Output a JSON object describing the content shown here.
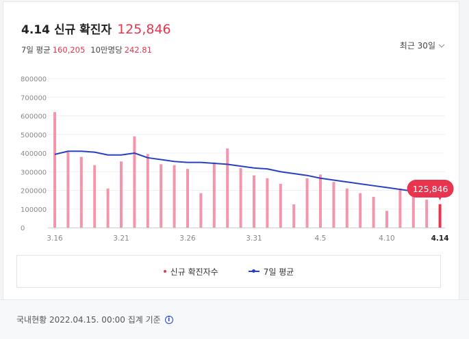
{
  "header": {
    "date": "4.14",
    "title": "신규 확진자",
    "value": "125,846",
    "avg_label": "7일 평균",
    "avg_value": "160,205",
    "per100k_label": "10만명당",
    "per100k_value": "242.81",
    "period": "최근 30일"
  },
  "legend": {
    "bar_label": "신규 확진자수",
    "line_label": "7일 평균"
  },
  "footer": {
    "note": "국내현황 2022.04.15. 00:00 집계 기준",
    "info_icon": "info-icon"
  },
  "colors": {
    "bar": "#f496ab",
    "bar_highlight": "#e8344e",
    "line": "#2740c3",
    "accent": "#e8344e"
  },
  "chart_data": {
    "type": "bar",
    "categories": [
      "3.16",
      "3.17",
      "3.18",
      "3.19",
      "3.20",
      "3.21",
      "3.22",
      "3.23",
      "3.24",
      "3.25",
      "3.26",
      "3.27",
      "3.28",
      "3.29",
      "3.30",
      "3.31",
      "4.1",
      "4.2",
      "4.3",
      "4.4",
      "4.5",
      "4.6",
      "4.7",
      "4.8",
      "4.9",
      "4.10",
      "4.11",
      "4.12",
      "4.13",
      "4.14"
    ],
    "tick_labels": [
      "3.16",
      "3.21",
      "3.26",
      "3.31",
      "4.5",
      "4.10",
      "4.14"
    ],
    "y_ticks": [
      "0",
      "100000",
      "200000",
      "300000",
      "400000",
      "500000",
      "600000",
      "700000",
      "800000"
    ],
    "ylim": [
      0,
      800000
    ],
    "series": [
      {
        "name": "신규 확진자수",
        "type": "bar",
        "values": [
          620000,
          405000,
          380000,
          335000,
          210000,
          355000,
          490000,
          395000,
          340000,
          335000,
          315000,
          185000,
          350000,
          425000,
          320000,
          280000,
          265000,
          235000,
          125000,
          265000,
          285000,
          245000,
          210000,
          185000,
          165000,
          90000,
          210000,
          185000,
          150000,
          125846
        ]
      },
      {
        "name": "7일 평균",
        "type": "line",
        "values": [
          393000,
          410000,
          410000,
          405000,
          390000,
          390000,
          400000,
          375000,
          365000,
          355000,
          350000,
          350000,
          345000,
          340000,
          330000,
          320000,
          315000,
          300000,
          290000,
          280000,
          265000,
          255000,
          245000,
          235000,
          225000,
          215000,
          205000,
          195000,
          190000,
          160205
        ]
      }
    ],
    "highlight_label": "125,846"
  }
}
